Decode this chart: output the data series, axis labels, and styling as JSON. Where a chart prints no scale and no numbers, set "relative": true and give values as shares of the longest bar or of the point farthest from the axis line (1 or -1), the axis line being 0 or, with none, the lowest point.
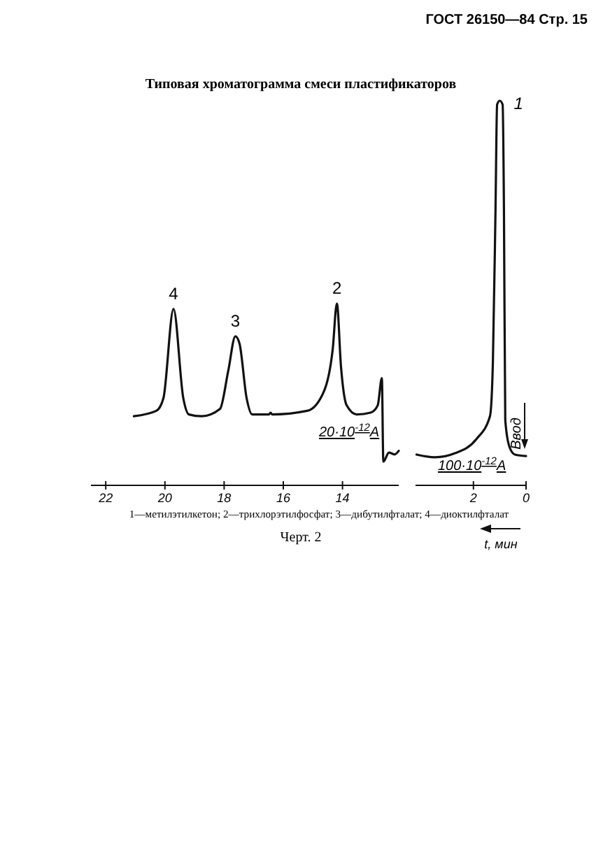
{
  "chart_data": [
    {
      "type": "line",
      "title": "Типовая хроматограмма смеси пластификаторов",
      "relative": true,
      "xlim": [
        22.5,
        12.1
      ],
      "xticks": [
        22,
        20,
        18,
        16,
        14
      ],
      "series": [
        {
          "color": "#111111",
          "x": [
            21.05,
            20.29,
            20.05,
            19.71,
            19.38,
            19.19,
            18.76,
            18.14,
            17.86,
            17.62,
            17.48,
            17.24,
            17.05,
            16.48,
            16.43,
            16.38,
            15.19,
            14.62,
            14.33,
            14.19,
            14.05,
            13.86,
            13.52,
            13.05,
            12.81,
            12.67,
            12.62,
            12.43,
            12.24,
            12.1
          ],
          "values": [
            0.38,
            0.41,
            0.48,
            0.97,
            0.48,
            0.39,
            0.38,
            0.42,
            0.63,
            0.82,
            0.78,
            0.48,
            0.39,
            0.39,
            0.4,
            0.39,
            0.41,
            0.52,
            0.75,
            1,
            0.65,
            0.44,
            0.39,
            0.4,
            0.44,
            0.59,
            0.13,
            0.18,
            0.17,
            0.19
          ]
        }
      ],
      "annotations": [
        "ГОСТ 26150—84 Стр. 15",
        "1—метилэтилкетон; 2—трихлорэтилфосфат; 3—дибутилфталат; 4—диоктилфталат",
        "Черт. 2",
        {
          "text": "4",
          "x": 19.71,
          "y": 0.97
        },
        {
          "text": "3",
          "x": 17.62,
          "y": 0.82
        },
        {
          "text": "2",
          "x": 14.19,
          "y": 1
        },
        "20·10$^{-12}$A"
      ]
    },
    {
      "type": "line",
      "relative": true,
      "xlim": [
        4.2,
        0
      ],
      "xticks": [
        2,
        0
      ],
      "xlabel": "t, мин",
      "series": [
        {
          "color": "#111111",
          "x": [
            4.16,
            3.47,
            2.68,
            1.89,
            1.37,
            1.26,
            1.16,
            1.1,
            1.0,
            0.89,
            0.84,
            0.79,
            0.63,
            0.42,
            0
          ],
          "values": [
            0.08,
            0.073,
            0.084,
            0.12,
            0.18,
            0.32,
            0.72,
            0.99,
            1,
            0.99,
            0.72,
            0.17,
            0.1,
            0.08,
            0.076
          ]
        }
      ],
      "annotations": [
        {
          "text": "1",
          "x": 1.0,
          "y": 1
        },
        "100·10$^{-12}$A",
        "Ввод"
      ]
    }
  ]
}
